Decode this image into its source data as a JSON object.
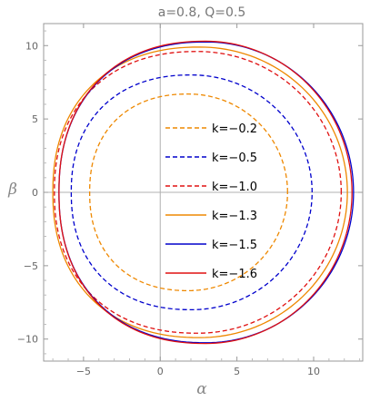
{
  "chart_data": {
    "type": "line",
    "title": "a=0.8, Q=0.5",
    "xlabel": "α",
    "ylabel": "β",
    "xlim": [
      -7.6,
      13.2
    ],
    "ylim": [
      -11.5,
      11.5
    ],
    "xticks": [
      -5,
      0,
      5,
      10
    ],
    "yticks": [
      -10,
      -5,
      0,
      5,
      10
    ],
    "tick_labels_x": [
      "−5",
      "0",
      "5",
      "10"
    ],
    "tick_labels_y": [
      "−10",
      "−5",
      "0",
      "5",
      "10"
    ],
    "grid": false,
    "legend": "center",
    "series": [
      {
        "name": "k=−0.2",
        "color": "#ee8800",
        "dash": "dashed",
        "x_min": -4.6,
        "x_max": 8.3,
        "y_max": 6.7
      },
      {
        "name": "k=−0.5",
        "color": "#0000cc",
        "dash": "dashed",
        "x_min": -5.8,
        "x_max": 9.9,
        "y_max": 8.0
      },
      {
        "name": "k=−1.0",
        "color": "#e01010",
        "dash": "dashed",
        "x_min": -6.9,
        "x_max": 11.8,
        "y_max": 9.6
      },
      {
        "name": "k=−1.3",
        "color": "#ee8800",
        "dash": "solid",
        "x_min": -7.0,
        "x_max": 12.2,
        "y_max": 9.9
      },
      {
        "name": "k=−1.5",
        "color": "#0000cc",
        "dash": "solid",
        "x_min": -6.6,
        "x_max": 12.6,
        "y_max": 10.25
      },
      {
        "name": "k=−1.6",
        "color": "#e01010",
        "dash": "solid",
        "x_min": -6.6,
        "x_max": 12.5,
        "y_max": 10.3
      }
    ]
  }
}
